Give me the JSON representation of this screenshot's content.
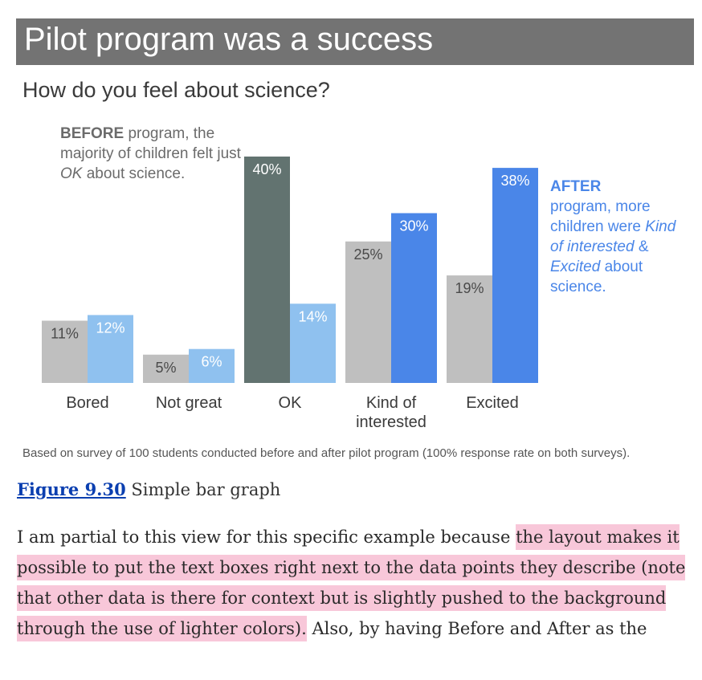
{
  "banner": {
    "title": "Pilot program was a success"
  },
  "chart_data": {
    "type": "bar",
    "title": "Pilot program was a success",
    "subtitle": "How do you feel about science?",
    "categories": [
      "Bored",
      "Not great",
      "OK",
      "Kind of interested",
      "Excited"
    ],
    "category_lines": [
      [
        "Bored"
      ],
      [
        "Not great"
      ],
      [
        "OK"
      ],
      [
        "Kind of",
        "interested"
      ],
      [
        "Excited"
      ]
    ],
    "series": [
      {
        "key": "before",
        "values": [
          11,
          5,
          40,
          25,
          19
        ]
      },
      {
        "key": "after",
        "values": [
          12,
          6,
          14,
          30,
          38
        ]
      }
    ],
    "value_suffix": "%",
    "ylim": [
      0,
      40
    ],
    "grid": false,
    "colors": {
      "before_default": "#bfbfbf",
      "before_highlight": "#627370",
      "after_default": "#8fc1ef",
      "after_highlight": "#4a86e8",
      "label_on_gray": "#4a4a4a",
      "label_on_light": "#ffffff"
    },
    "highlight": {
      "before": [
        "OK"
      ],
      "after": [
        "Kind of interested",
        "Excited"
      ]
    },
    "annotations": {
      "before": {
        "bold": "BEFORE",
        "text": " program, the majority of children felt just ",
        "em": "OK",
        "tail": " about science."
      },
      "after": {
        "bold": "AFTER",
        "text1": "program, more children were ",
        "em1": "Kind of interested",
        "amp": " & ",
        "em2": "Excited",
        "tail": " about science."
      }
    },
    "footnote": "Based on survey of 100 students conducted before and after pilot program (100% response rate on both surveys)."
  },
  "caption": {
    "link": "Figure 9.30",
    "text": " Simple bar graph"
  },
  "body": {
    "part1": "I am partial to this view for this specific example because ",
    "highlight": "the layout makes it possible to put the text boxes right next to the data points they describe (note that other data is there for context but is slightly pushed to the background through the use of lighter colors).",
    "part2": " Also, by having Before and After as the"
  }
}
